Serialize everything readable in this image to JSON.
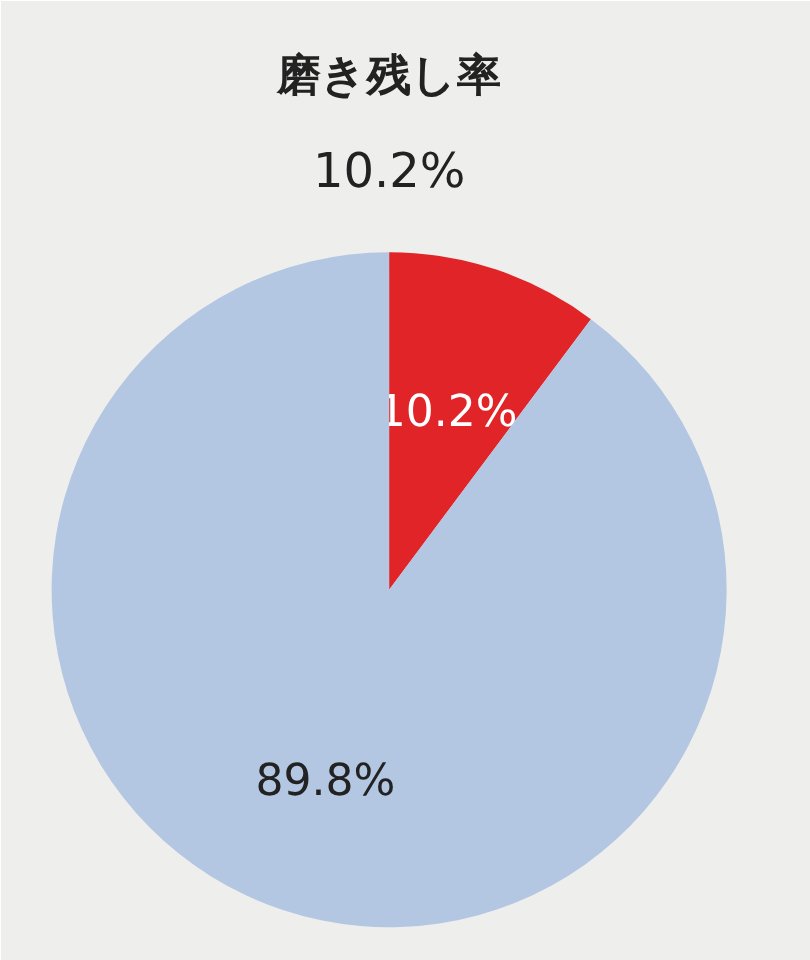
{
  "chart_data": {
    "type": "pie",
    "title": "磨き残し率",
    "subtitle": "10.2%",
    "categories": [
      null,
      null
    ],
    "values": [
      10.2,
      89.8
    ],
    "colors": [
      "#e02427",
      "#b3c6e2"
    ],
    "value_labels": [
      "10.2%",
      "89.8%"
    ]
  }
}
